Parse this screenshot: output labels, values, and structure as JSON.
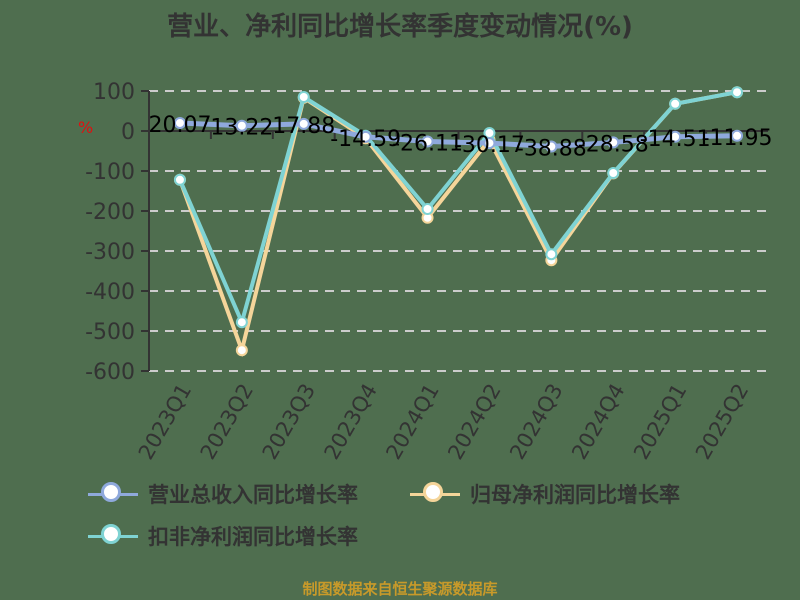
{
  "title": "营业、净利同比增长率季度变动情况(%)",
  "unit_label": "%",
  "footer": "制图数据来自恒生聚源数据库",
  "colors": {
    "revenue": "#8fa9dc",
    "net_profit": "#f5d59a",
    "deducted_profit": "#7fd3d3",
    "axis_text": "#333333",
    "grid": "#cccccc"
  },
  "legend": [
    {
      "label": "营业总收入同比增长率",
      "color": "#8fa9dc"
    },
    {
      "label": "归母净利润同比增长率",
      "color": "#f5d59a"
    },
    {
      "label": "扣非净利润同比增长率",
      "color": "#7fd3d3"
    }
  ],
  "chart_data": {
    "type": "line",
    "title": "营业、净利同比增长率季度变动情况(%)",
    "xlabel": "",
    "ylabel": "%",
    "ylim": [
      -600,
      100
    ],
    "yticks": [
      100,
      0,
      -100,
      -200,
      -300,
      -400,
      -500,
      -600
    ],
    "grid": true,
    "legend_position": "bottom",
    "categories": [
      "2023Q1",
      "2023Q2",
      "2023Q3",
      "2023Q4",
      "2024Q1",
      "2024Q2",
      "2024Q3",
      "2024Q4",
      "2025Q1",
      "2025Q2"
    ],
    "series": [
      {
        "name": "营业总收入同比增长率",
        "values": [
          20.07,
          13.22,
          17.88,
          -14.59,
          -26.11,
          -30.17,
          -38.88,
          -28.58,
          -14.51,
          -11.95
        ],
        "labels": [
          "20.07",
          "13.22",
          "17.88",
          "-14.59",
          "-26.11",
          "-30.17",
          "-38.88",
          "-28.58",
          "-14.51",
          "-11.95"
        ]
      },
      {
        "name": "归母净利润同比增长率",
        "values": [
          -122,
          -548,
          83,
          -18,
          -217,
          -22,
          -323,
          -106,
          68,
          97
        ]
      },
      {
        "name": "扣非净利润同比增长率",
        "values": [
          -122,
          -478,
          85,
          -12,
          -195,
          -5,
          -308,
          -105,
          68,
          97
        ]
      }
    ]
  }
}
